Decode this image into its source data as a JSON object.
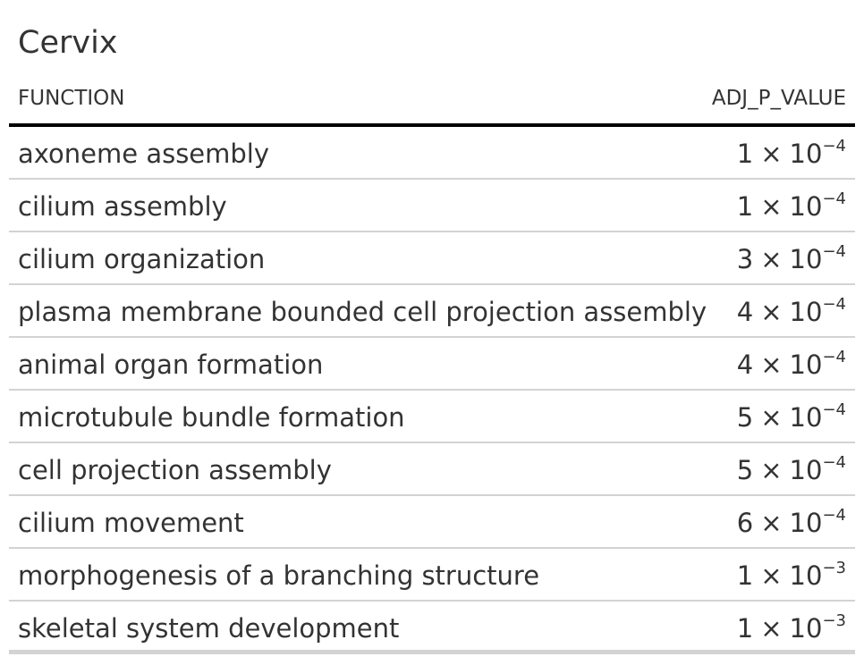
{
  "table": {
    "title": "Cervix",
    "columns": {
      "function": "FUNCTION",
      "adj_p_value": "ADJ_P_VALUE"
    },
    "rows": [
      {
        "function": "axoneme assembly",
        "mantissa": "1",
        "times": "×",
        "base": "10",
        "exponent": "−4"
      },
      {
        "function": "cilium assembly",
        "mantissa": "1",
        "times": "×",
        "base": "10",
        "exponent": "−4"
      },
      {
        "function": "cilium organization",
        "mantissa": "3",
        "times": "×",
        "base": "10",
        "exponent": "−4"
      },
      {
        "function": "plasma membrane bounded cell projection assembly",
        "mantissa": "4",
        "times": "×",
        "base": "10",
        "exponent": "−4"
      },
      {
        "function": "animal organ formation",
        "mantissa": "4",
        "times": "×",
        "base": "10",
        "exponent": "−4"
      },
      {
        "function": "microtubule bundle formation",
        "mantissa": "5",
        "times": "×",
        "base": "10",
        "exponent": "−4"
      },
      {
        "function": "cell projection assembly",
        "mantissa": "5",
        "times": "×",
        "base": "10",
        "exponent": "−4"
      },
      {
        "function": "cilium movement",
        "mantissa": "6",
        "times": "×",
        "base": "10",
        "exponent": "−4"
      },
      {
        "function": "morphogenesis of a branching structure",
        "mantissa": "1",
        "times": "×",
        "base": "10",
        "exponent": "−3"
      },
      {
        "function": "skeletal system development",
        "mantissa": "1",
        "times": "×",
        "base": "10",
        "exponent": "−3"
      }
    ]
  }
}
